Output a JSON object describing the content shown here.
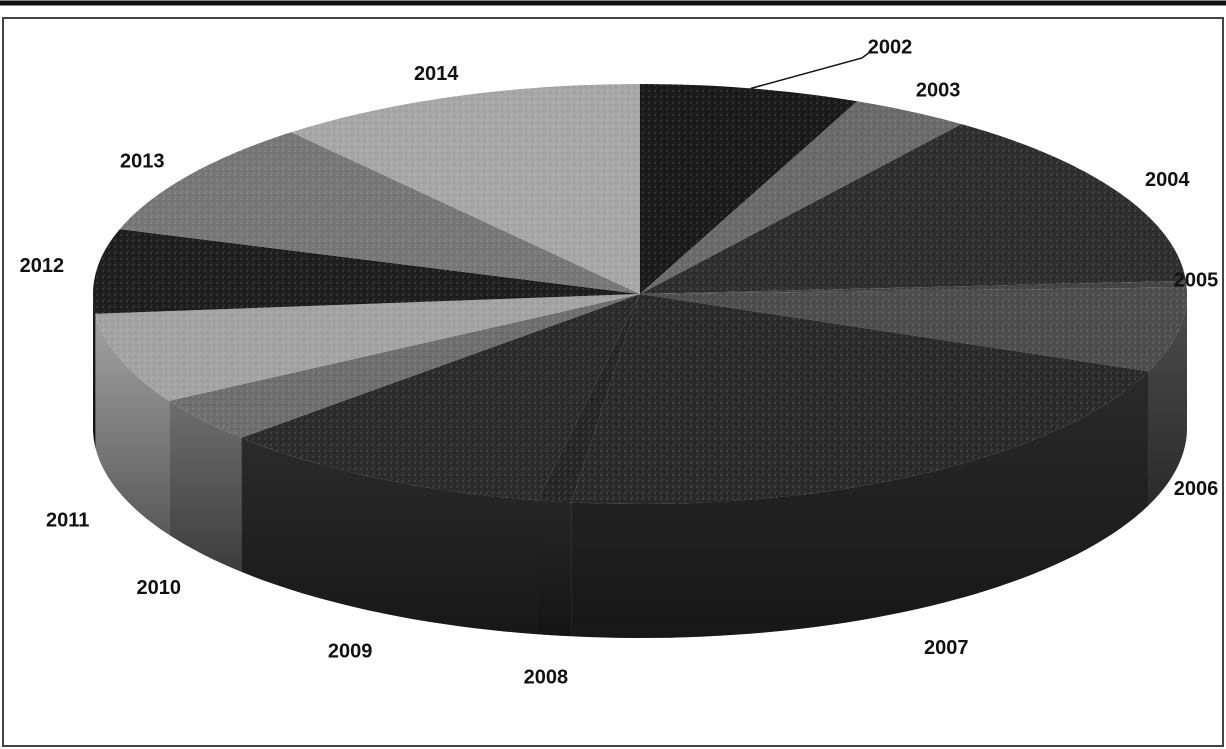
{
  "chart_data": {
    "type": "pie",
    "style": "3d",
    "title": "",
    "categories": [
      "2002",
      "2003",
      "2004",
      "2005",
      "2006",
      "2007",
      "2008",
      "2009",
      "2010",
      "2011",
      "2012",
      "2013",
      "2014"
    ],
    "values": [
      6.5,
      3.5,
      14.0,
      0.5,
      6.5,
      21.0,
      1.0,
      10.0,
      3.5,
      7.0,
      6.5,
      9.0,
      11.0
    ],
    "colors": [
      "#1a1a1a",
      "#6a6a6a",
      "#2e2e2e",
      "#444444",
      "#4d4d4d",
      "#2a2a2a",
      "#262626",
      "#2b2b2b",
      "#6e6e6e",
      "#a3a3a3",
      "#1e1e1e",
      "#777777",
      "#a6a6a6",
      "#b9b9b9"
    ],
    "legend": "none"
  }
}
